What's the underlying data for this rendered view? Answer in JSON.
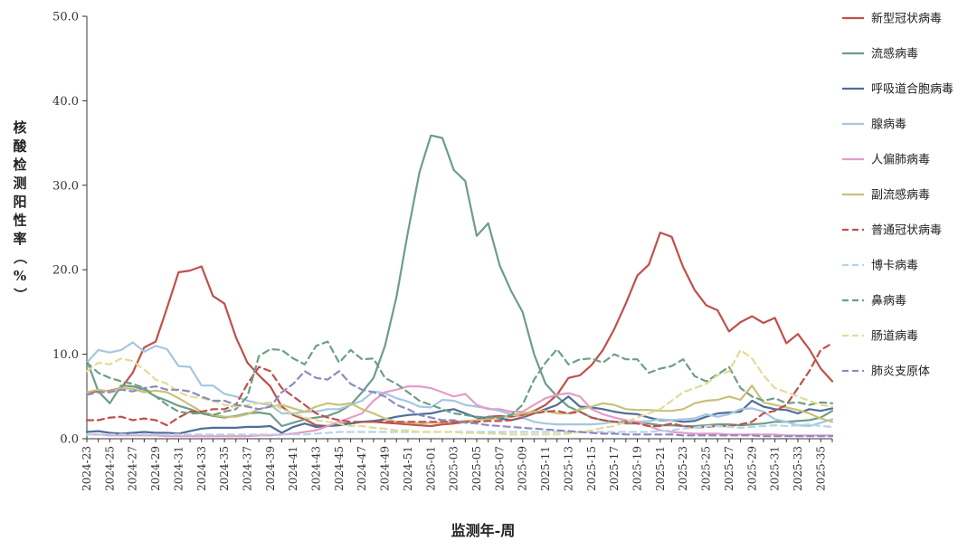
{
  "chart_data": {
    "type": "line",
    "title": "",
    "xlabel": "监测年-周",
    "ylabel": "核酸检测阳性率（%）",
    "ylim": [
      0,
      50
    ],
    "yticks": [
      "0.0",
      "10.0",
      "20.0",
      "30.0",
      "40.0",
      "50.0"
    ],
    "x": [
      "2024-23",
      "2024-24",
      "2024-25",
      "2024-26",
      "2024-27",
      "2024-28",
      "2024-29",
      "2024-30",
      "2024-31",
      "2024-32",
      "2024-33",
      "2024-34",
      "2024-35",
      "2024-36",
      "2024-37",
      "2024-38",
      "2024-39",
      "2024-40",
      "2024-41",
      "2024-42",
      "2024-43",
      "2024-44",
      "2024-45",
      "2024-46",
      "2024-47",
      "2024-48",
      "2024-49",
      "2024-50",
      "2024-51",
      "2024-52",
      "2025-01",
      "2025-02",
      "2025-03",
      "2025-04",
      "2025-05",
      "2025-06",
      "2025-07",
      "2025-08",
      "2025-09",
      "2025-10",
      "2025-11",
      "2025-12",
      "2025-13",
      "2025-14",
      "2025-15",
      "2025-16",
      "2025-17",
      "2025-18",
      "2025-19",
      "2025-20",
      "2025-21",
      "2025-22",
      "2025-23",
      "2025-24",
      "2025-25",
      "2025-26",
      "2025-27",
      "2025-28",
      "2025-29",
      "2025-30",
      "2025-31",
      "2025-32",
      "2025-33",
      "2025-34",
      "2025-35",
      "2025-36"
    ],
    "xtick_labels": [
      "2024-23",
      "2024-25",
      "2024-27",
      "2024-29",
      "2024-31",
      "2024-33",
      "2024-35",
      "2024-37",
      "2024-39",
      "2024-41",
      "2024-43",
      "2024-45",
      "2024-47",
      "2024-49",
      "2024-51",
      "2025-01",
      "2025-03",
      "2025-05",
      "2025-07",
      "2025-09",
      "2025-11",
      "2025-13",
      "2025-15",
      "2025-17",
      "2025-19",
      "2025-21",
      "2025-23",
      "2025-25",
      "2025-27",
      "2025-29",
      "2025-31",
      "2025-33",
      "2025-35"
    ],
    "legend_position": "right",
    "grid": false,
    "series": [
      {
        "name": "新型冠状病毒",
        "color": "#C0504D",
        "dash": "solid",
        "values": [
          5.5,
          5.6,
          5.7,
          6.0,
          7.8,
          10.8,
          11.5,
          15.5,
          19.7,
          19.9,
          20.4,
          16.9,
          16.0,
          12.0,
          9.0,
          7.5,
          6.2,
          3.8,
          2.8,
          2.3,
          1.6,
          1.5,
          1.8,
          1.8,
          2.0,
          2.0,
          1.9,
          1.8,
          1.7,
          1.6,
          1.5,
          1.7,
          1.8,
          2.0,
          2.2,
          2.6,
          2.7,
          2.6,
          2.8,
          3.3,
          4.0,
          5.2,
          7.2,
          7.5,
          8.7,
          10.5,
          13.0,
          16.0,
          19.3,
          20.6,
          24.4,
          23.9,
          20.3,
          17.6,
          15.8,
          15.2,
          12.7,
          13.8,
          14.5,
          13.7,
          14.3,
          11.3,
          12.4,
          10.6,
          8.3,
          6.8
        ]
      },
      {
        "name": "流感病毒",
        "color": "#6E9E86",
        "dash": "solid",
        "values": [
          9.3,
          5.6,
          4.2,
          6.3,
          6.2,
          5.8,
          5.0,
          4.5,
          3.9,
          3.5,
          3.0,
          2.7,
          2.5,
          2.7,
          3.0,
          3.1,
          2.9,
          1.5,
          1.9,
          2.3,
          2.5,
          2.7,
          3.2,
          4.0,
          5.5,
          7.2,
          11.0,
          16.8,
          24.5,
          31.5,
          35.9,
          35.6,
          31.8,
          30.5,
          24.0,
          25.5,
          20.5,
          17.5,
          15.0,
          10.0,
          6.5,
          5.0,
          3.8,
          3.2,
          2.5,
          2.2,
          2.0,
          1.8,
          1.8,
          1.8,
          1.6,
          1.6,
          1.5,
          1.5,
          1.6,
          1.7,
          1.7,
          1.6,
          1.7,
          1.8,
          2.0,
          2.0,
          2.1,
          2.2,
          2.5,
          3.3
        ]
      },
      {
        "name": "呼吸道合胞病毒",
        "color": "#4F6E9A",
        "dash": "solid",
        "values": [
          0.8,
          0.9,
          0.7,
          0.6,
          0.7,
          0.8,
          0.7,
          0.7,
          0.6,
          0.9,
          1.2,
          1.3,
          1.3,
          1.3,
          1.4,
          1.4,
          1.5,
          0.7,
          1.4,
          1.8,
          1.4,
          1.5,
          1.6,
          1.8,
          2.0,
          2.1,
          2.3,
          2.6,
          2.8,
          2.9,
          3.0,
          3.3,
          3.5,
          3.0,
          2.5,
          2.5,
          2.4,
          2.2,
          2.5,
          3.0,
          3.5,
          4.0,
          5.0,
          3.8,
          3.7,
          3.5,
          3.2,
          3.0,
          2.9,
          2.5,
          2.2,
          2.2,
          2.0,
          2.1,
          2.6,
          3.0,
          3.1,
          3.2,
          4.5,
          3.8,
          3.5,
          3.4,
          3.0,
          3.5,
          3.3,
          3.6
        ]
      },
      {
        "name": "腺病毒",
        "color": "#A6C6E0",
        "dash": "solid",
        "values": [
          9.0,
          10.5,
          10.2,
          10.5,
          11.4,
          10.3,
          11.0,
          10.6,
          8.6,
          8.5,
          6.3,
          6.3,
          5.3,
          5.0,
          4.5,
          4.2,
          4.0,
          3.0,
          3.0,
          3.2,
          3.2,
          3.5,
          3.5,
          4.0,
          4.5,
          5.6,
          5.4,
          4.8,
          4.4,
          3.8,
          3.7,
          4.6,
          4.5,
          4.0,
          3.8,
          3.6,
          3.3,
          2.9,
          2.5,
          2.0,
          1.8,
          1.7,
          1.7,
          1.7,
          1.7,
          1.8,
          2.0,
          2.0,
          2.0,
          2.1,
          2.3,
          2.2,
          2.3,
          2.4,
          2.9,
          2.6,
          2.9,
          3.5,
          3.6,
          3.2,
          2.3,
          2.0,
          1.6,
          1.5,
          1.9,
          2.3
        ]
      },
      {
        "name": "人偏肺病毒",
        "color": "#E59CC8",
        "dash": "solid",
        "values": [
          0.5,
          0.5,
          0.4,
          0.4,
          0.4,
          0.4,
          0.4,
          0.3,
          0.3,
          0.3,
          0.3,
          0.3,
          0.3,
          0.3,
          0.3,
          0.4,
          0.4,
          0.5,
          0.6,
          0.8,
          1.0,
          1.5,
          2.0,
          2.5,
          3.0,
          4.5,
          5.5,
          5.8,
          6.2,
          6.2,
          6.0,
          5.5,
          5.0,
          5.3,
          4.0,
          3.5,
          3.5,
          3.2,
          3.2,
          4.0,
          4.8,
          5.2,
          5.4,
          5.0,
          3.5,
          2.9,
          2.5,
          2.2,
          2.0,
          1.5,
          1.0,
          0.8,
          0.7,
          0.6,
          0.6,
          0.6,
          0.5,
          0.5,
          0.5,
          0.5,
          0.5,
          0.4,
          0.4,
          0.4,
          0.4,
          0.4
        ]
      },
      {
        "name": "副流感病毒",
        "color": "#C9C178",
        "dash": "solid",
        "values": [
          5.5,
          5.8,
          5.6,
          6.0,
          5.9,
          5.5,
          5.7,
          5.5,
          4.8,
          4.0,
          3.2,
          2.8,
          2.6,
          2.6,
          2.9,
          3.5,
          3.8,
          4.0,
          3.6,
          3.2,
          3.8,
          4.2,
          4.0,
          4.2,
          3.5,
          3.0,
          2.4,
          2.0,
          1.9,
          1.8,
          1.9,
          1.9,
          2.0,
          2.1,
          2.2,
          2.3,
          2.5,
          2.8,
          3.0,
          3.2,
          3.3,
          3.0,
          3.0,
          3.5,
          3.8,
          4.2,
          4.0,
          3.5,
          3.4,
          3.4,
          3.3,
          3.3,
          3.5,
          4.2,
          4.5,
          4.6,
          5.0,
          4.6,
          6.3,
          4.3,
          4.0,
          3.7,
          3.4,
          3.0,
          2.4,
          2.0
        ]
      },
      {
        "name": "普通冠状病毒",
        "color": "#C0504D",
        "dash": "dashed",
        "values": [
          2.2,
          2.2,
          2.5,
          2.6,
          2.2,
          2.4,
          2.2,
          1.6,
          2.5,
          3.2,
          3.2,
          3.5,
          3.5,
          4.0,
          6.5,
          8.5,
          8.0,
          6.0,
          5.0,
          4.0,
          3.0,
          2.5,
          2.2,
          2.0,
          2.0,
          2.0,
          2.0,
          2.0,
          2.0,
          2.0,
          2.0,
          2.0,
          2.0,
          2.0,
          2.0,
          2.1,
          2.1,
          2.2,
          2.5,
          3.0,
          3.2,
          3.3,
          3.0,
          3.2,
          2.5,
          2.2,
          2.0,
          2.0,
          1.8,
          1.5,
          1.5,
          1.8,
          1.5,
          1.3,
          1.4,
          1.5,
          1.5,
          1.7,
          2.0,
          3.0,
          3.3,
          4.0,
          6.0,
          8.0,
          10.5,
          11.3
        ]
      },
      {
        "name": "博卡病毒",
        "color": "#B8D4EC",
        "dash": "dashed",
        "values": [
          0.5,
          0.5,
          0.5,
          0.5,
          0.5,
          0.5,
          0.5,
          0.5,
          0.5,
          0.5,
          0.5,
          0.5,
          0.5,
          0.5,
          0.5,
          0.5,
          0.5,
          0.5,
          0.5,
          0.5,
          0.6,
          0.7,
          0.8,
          0.8,
          0.8,
          0.8,
          0.8,
          0.8,
          0.8,
          0.8,
          0.8,
          0.8,
          0.8,
          0.8,
          0.8,
          0.8,
          0.8,
          0.8,
          0.8,
          0.8,
          0.8,
          0.8,
          0.8,
          0.8,
          0.8,
          0.8,
          0.8,
          0.8,
          0.8,
          0.8,
          0.9,
          1.0,
          1.2,
          1.3,
          1.5,
          1.5,
          1.4,
          1.3,
          1.4,
          1.5,
          1.6,
          1.5,
          1.6,
          1.7,
          1.5,
          1.4
        ]
      },
      {
        "name": "鼻病毒",
        "color": "#6E9E86",
        "dash": "dashed",
        "values": [
          9.0,
          7.8,
          7.2,
          6.8,
          6.5,
          6.0,
          5.0,
          4.0,
          3.2,
          3.0,
          3.0,
          2.8,
          3.2,
          3.5,
          5.0,
          9.8,
          10.6,
          10.5,
          9.5,
          8.8,
          11.0,
          11.5,
          9.0,
          10.5,
          9.4,
          9.5,
          7.2,
          6.5,
          5.5,
          4.5,
          4.0,
          3.5,
          3.0,
          2.8,
          2.6,
          2.5,
          2.5,
          2.8,
          4.0,
          7.0,
          9.0,
          10.6,
          8.8,
          9.4,
          9.5,
          9.0,
          10.0,
          9.4,
          9.4,
          7.8,
          8.3,
          8.6,
          9.4,
          7.4,
          6.8,
          7.6,
          8.5,
          6.0,
          5.0,
          4.5,
          4.8,
          4.2,
          4.3,
          4.0,
          4.3,
          4.2
        ]
      },
      {
        "name": "肠道病毒",
        "color": "#E2DC96",
        "dash": "dashed",
        "values": [
          8.0,
          9.0,
          8.8,
          9.5,
          9.2,
          8.2,
          7.0,
          6.5,
          5.5,
          5.0,
          4.8,
          4.5,
          4.0,
          3.8,
          4.0,
          4.2,
          4.3,
          3.5,
          3.0,
          2.5,
          2.2,
          2.0,
          1.8,
          1.5,
          1.5,
          1.3,
          1.2,
          1.0,
          1.0,
          0.8,
          0.8,
          0.8,
          0.8,
          0.7,
          0.7,
          0.6,
          0.6,
          0.5,
          0.5,
          0.5,
          0.5,
          0.5,
          0.6,
          0.8,
          1.0,
          1.3,
          1.5,
          2.0,
          2.5,
          3.0,
          3.5,
          4.5,
          5.5,
          6.0,
          6.5,
          7.5,
          8.0,
          10.5,
          9.5,
          7.5,
          6.0,
          5.5,
          5.0,
          4.5,
          4.0,
          3.8
        ]
      },
      {
        "name": "肺炎支原体",
        "color": "#8E8ABF",
        "dash": "dashed",
        "values": [
          5.2,
          5.5,
          5.5,
          5.8,
          5.6,
          6.0,
          6.2,
          5.8,
          5.8,
          5.6,
          5.0,
          4.5,
          4.5,
          4.0,
          3.8,
          3.5,
          3.8,
          5.5,
          6.5,
          8.0,
          7.2,
          7.0,
          8.0,
          6.5,
          5.8,
          5.5,
          5.0,
          4.0,
          3.5,
          2.8,
          2.5,
          2.2,
          2.2,
          1.9,
          1.8,
          1.6,
          1.5,
          1.4,
          1.3,
          1.2,
          1.1,
          1.0,
          0.9,
          0.8,
          0.7,
          0.6,
          0.6,
          0.5,
          0.5,
          0.5,
          0.5,
          0.5,
          0.4,
          0.4,
          0.4,
          0.4,
          0.4,
          0.4,
          0.4,
          0.3,
          0.3,
          0.3,
          0.3,
          0.3,
          0.3,
          0.3
        ]
      }
    ]
  }
}
